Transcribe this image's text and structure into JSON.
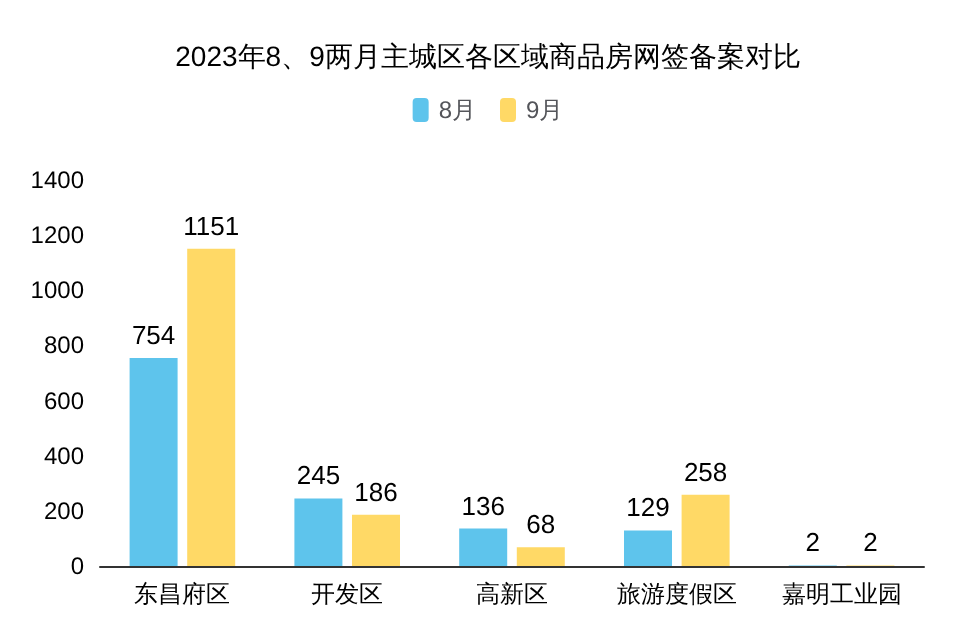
{
  "chart_data": {
    "type": "bar",
    "title": "2023年8、9两月主城区各区域商品房网签备案对比",
    "categories": [
      "东昌府区",
      "开发区",
      "高新区",
      "旅游度假区",
      "嘉明工业园"
    ],
    "series": [
      {
        "name": "8月",
        "color": "#5ec4ec",
        "values": [
          754,
          245,
          136,
          129,
          2
        ]
      },
      {
        "name": "9月",
        "color": "#ffd966",
        "values": [
          1151,
          186,
          68,
          258,
          2
        ]
      }
    ],
    "ylim": [
      0,
      1400
    ],
    "yticks": [
      0,
      200,
      400,
      600,
      800,
      1000,
      1200,
      1400
    ],
    "data_labels": true,
    "grid": false,
    "legend": "top"
  }
}
